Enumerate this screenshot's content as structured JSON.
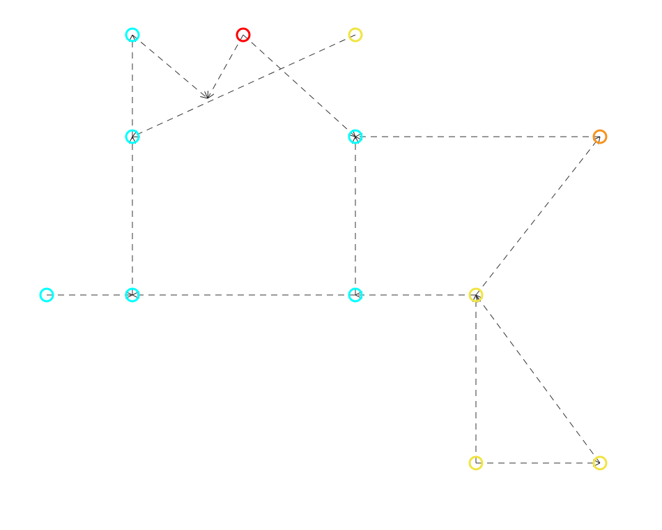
{
  "diagram": {
    "type": "node-link graph",
    "edge_style": "dashed",
    "edge_color": "#333333",
    "nodes": [
      {
        "id": "a",
        "color": "#00ffff"
      },
      {
        "id": "b",
        "color": "#ff0000"
      },
      {
        "id": "c",
        "color": "#f0e442"
      },
      {
        "id": "d",
        "color": "#00ffff"
      },
      {
        "id": "e",
        "color": "#00ffff"
      },
      {
        "id": "f",
        "color": "#f7931e"
      },
      {
        "id": "g",
        "color": "#00ffff"
      },
      {
        "id": "h",
        "color": "#00ffff"
      },
      {
        "id": "i",
        "color": "#00ffff"
      },
      {
        "id": "j",
        "color": "#f0e442"
      },
      {
        "id": "k",
        "color": "#f0e442"
      },
      {
        "id": "l",
        "color": "#f0e442"
      }
    ],
    "edges": [
      [
        "d",
        "a"
      ],
      [
        "a",
        "x"
      ],
      [
        "b",
        "x"
      ],
      [
        "b",
        "e"
      ],
      [
        "c",
        "d"
      ],
      [
        "h",
        "d"
      ],
      [
        "i",
        "e"
      ],
      [
        "f",
        "e"
      ],
      [
        "g",
        "h"
      ],
      [
        "i",
        "h"
      ],
      [
        "j",
        "i"
      ],
      [
        "j",
        "f"
      ],
      [
        "k",
        "j"
      ],
      [
        "l",
        "j"
      ],
      [
        "k",
        "l"
      ]
    ]
  }
}
